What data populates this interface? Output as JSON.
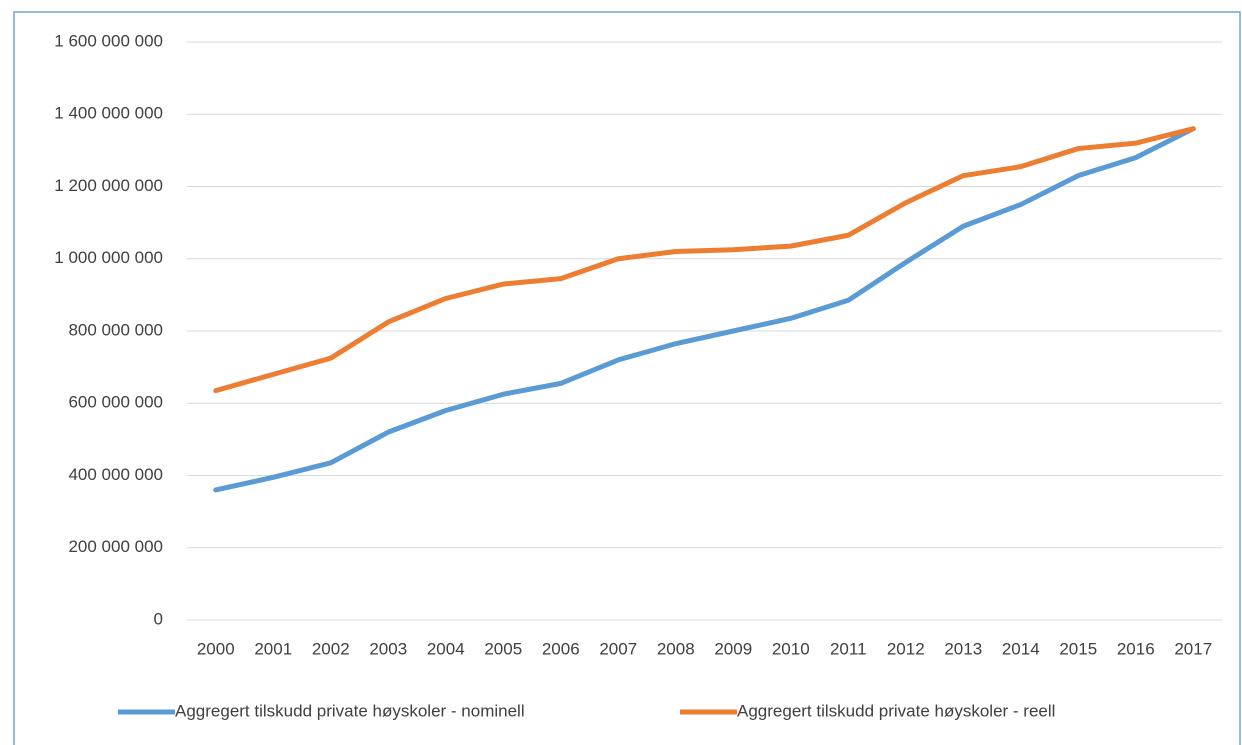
{
  "chart_data": {
    "type": "line",
    "categories": [
      "2000",
      "2001",
      "2002",
      "2003",
      "2004",
      "2005",
      "2006",
      "2007",
      "2008",
      "2009",
      "2010",
      "2011",
      "2012",
      "2013",
      "2014",
      "2015",
      "2016",
      "2017"
    ],
    "series": [
      {
        "name": "Aggregert tilskudd private høyskoler - nominell",
        "color": "#5b9bd5",
        "values": [
          360000000,
          395000000,
          435000000,
          520000000,
          580000000,
          625000000,
          655000000,
          720000000,
          765000000,
          800000000,
          835000000,
          885000000,
          990000000,
          1090000000,
          1150000000,
          1230000000,
          1280000000,
          1360000000
        ]
      },
      {
        "name": "Aggregert tilskudd private høyskoler - reell",
        "color": "#ed7d31",
        "values": [
          635000000,
          680000000,
          725000000,
          825000000,
          890000000,
          930000000,
          945000000,
          1000000000,
          1020000000,
          1025000000,
          1035000000,
          1065000000,
          1155000000,
          1230000000,
          1255000000,
          1305000000,
          1320000000,
          1360000000
        ]
      }
    ],
    "ylim": [
      0,
      1600000000
    ],
    "yticks": [
      0,
      {
        "value": 200000000,
        "label": "200 000 000"
      },
      {
        "value": 400000000,
        "label": "400 000 000"
      },
      {
        "value": 600000000,
        "label": "600 000 000"
      },
      {
        "value": 800000000,
        "label": "800 000 000"
      },
      {
        "value": 1000000000,
        "label": "1 000 000 000"
      },
      {
        "value": 1200000000,
        "label": "1 200 000 000"
      },
      {
        "value": 1400000000,
        "label": "1 400 000 000"
      },
      {
        "value": 1600000000,
        "label": "1 600 000 000"
      }
    ],
    "grid": true,
    "legend": "bottom"
  }
}
